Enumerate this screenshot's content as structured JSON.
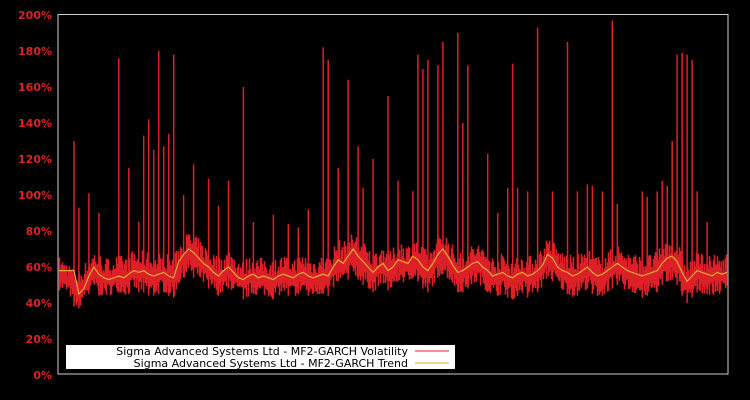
{
  "chart_data": {
    "type": "line",
    "title": "",
    "xlabel": "",
    "ylabel": "",
    "ylim": [
      0,
      200
    ],
    "y_tick_labels": [
      "0%",
      "20%",
      "40%",
      "60%",
      "80%",
      "100%",
      "120%",
      "140%",
      "160%",
      "180%",
      "200%"
    ],
    "y_ticks": [
      0,
      20,
      40,
      60,
      80,
      100,
      120,
      140,
      160,
      180,
      200
    ],
    "grid": false,
    "background": "#000000",
    "frame_color": "#cccccc",
    "tick_label_color": "#dd2222",
    "legend": {
      "position": "lower-left",
      "entries": [
        {
          "label": "Sigma Advanced Systems Ltd - MF2-GARCH Volatility",
          "color": "#dd2028"
        },
        {
          "label": "Sigma Advanced Systems Ltd - MF2-GARCH Trend",
          "color": "#ddaa33"
        }
      ]
    },
    "x_points": 135,
    "series": [
      {
        "name": "Sigma Advanced Systems Ltd - MF2-GARCH Trend",
        "color": "#ddaa33",
        "values": [
          58,
          58,
          58,
          58,
          45,
          48,
          55,
          60,
          56,
          54,
          53,
          54,
          55,
          54,
          56,
          58,
          57,
          58,
          56,
          55,
          56,
          57,
          55,
          54,
          63,
          67,
          70,
          68,
          65,
          62,
          60,
          57,
          55,
          58,
          60,
          57,
          54,
          53,
          55,
          56,
          54,
          55,
          54,
          53,
          55,
          56,
          55,
          54,
          56,
          57,
          55,
          54,
          55,
          56,
          55,
          60,
          64,
          62,
          66,
          70,
          66,
          63,
          60,
          57,
          60,
          62,
          58,
          60,
          64,
          63,
          62,
          66,
          64,
          60,
          58,
          62,
          67,
          70,
          66,
          61,
          57,
          58,
          60,
          62,
          63,
          60,
          58,
          55,
          56,
          57,
          55,
          54,
          56,
          57,
          55,
          56,
          58,
          61,
          67,
          65,
          60,
          58,
          57,
          55,
          56,
          58,
          60,
          57,
          55,
          56,
          58,
          60,
          62,
          60,
          58,
          57,
          56,
          55,
          56,
          57,
          58,
          62,
          65,
          66,
          63,
          57,
          52,
          55,
          58,
          57,
          56,
          55,
          57,
          56,
          57
        ]
      },
      {
        "name": "Sigma Advanced Systems Ltd - MF2-GARCH Volatility",
        "color": "#dd2028",
        "band_low": [
          47,
          46,
          44,
          38,
          37,
          42,
          45,
          46,
          44,
          43,
          44,
          45,
          46,
          44,
          45,
          47,
          46,
          46,
          44,
          44,
          45,
          46,
          44,
          43,
          50,
          54,
          56,
          54,
          52,
          50,
          48,
          46,
          44,
          45,
          48,
          46,
          43,
          42,
          43,
          45,
          43,
          44,
          43,
          42,
          44,
          45,
          44,
          43,
          45,
          46,
          44,
          43,
          44,
          45,
          44,
          48,
          52,
          50,
          53,
          56,
          53,
          50,
          48,
          46,
          48,
          50,
          47,
          48,
          52,
          51,
          50,
          54,
          52,
          48,
          46,
          50,
          54,
          56,
          53,
          49,
          46,
          46,
          48,
          50,
          51,
          48,
          46,
          43,
          44,
          45,
          43,
          42,
          44,
          45,
          43,
          44,
          46,
          49,
          54,
          52,
          48,
          46,
          45,
          43,
          44,
          46,
          48,
          45,
          43,
          44,
          46,
          48,
          50,
          48,
          46,
          45,
          44,
          43,
          44,
          45,
          46,
          50,
          52,
          53,
          50,
          44,
          40,
          43,
          46,
          45,
          45,
          44,
          45,
          45,
          46
        ],
        "band_high": [
          66,
          64,
          62,
          60,
          58,
          62,
          66,
          70,
          68,
          66,
          65,
          66,
          67,
          66,
          68,
          70,
          68,
          70,
          68,
          66,
          68,
          69,
          67,
          66,
          74,
          78,
          80,
          78,
          76,
          73,
          71,
          68,
          66,
          68,
          71,
          68,
          65,
          64,
          66,
          67,
          65,
          66,
          65,
          64,
          66,
          67,
          66,
          65,
          67,
          68,
          66,
          65,
          66,
          67,
          66,
          72,
          76,
          74,
          77,
          80,
          77,
          74,
          71,
          68,
          71,
          73,
          69,
          71,
          75,
          74,
          73,
          77,
          75,
          71,
          69,
          73,
          78,
          80,
          77,
          72,
          68,
          69,
          71,
          73,
          74,
          71,
          69,
          66,
          67,
          68,
          66,
          65,
          67,
          68,
          66,
          67,
          69,
          72,
          78,
          76,
          71,
          69,
          68,
          66,
          67,
          69,
          71,
          68,
          66,
          67,
          69,
          71,
          73,
          71,
          69,
          68,
          67,
          66,
          67,
          68,
          69,
          73,
          76,
          77,
          74,
          68,
          62,
          66,
          69,
          68,
          67,
          66,
          68,
          67,
          68
        ],
        "spikes": [
          {
            "x_index": 3,
            "peak": 130
          },
          {
            "x_index": 4,
            "peak": 93
          },
          {
            "x_index": 6,
            "peak": 101
          },
          {
            "x_index": 8,
            "peak": 90
          },
          {
            "x_index": 12,
            "peak": 176
          },
          {
            "x_index": 14,
            "peak": 115
          },
          {
            "x_index": 16,
            "peak": 85
          },
          {
            "x_index": 17,
            "peak": 133
          },
          {
            "x_index": 18,
            "peak": 142
          },
          {
            "x_index": 19,
            "peak": 125
          },
          {
            "x_index": 20,
            "peak": 180
          },
          {
            "x_index": 21,
            "peak": 127
          },
          {
            "x_index": 22,
            "peak": 134
          },
          {
            "x_index": 23,
            "peak": 178
          },
          {
            "x_index": 25,
            "peak": 100
          },
          {
            "x_index": 27,
            "peak": 117
          },
          {
            "x_index": 30,
            "peak": 109
          },
          {
            "x_index": 32,
            "peak": 94
          },
          {
            "x_index": 34,
            "peak": 108
          },
          {
            "x_index": 37,
            "peak": 160
          },
          {
            "x_index": 39,
            "peak": 85
          },
          {
            "x_index": 43,
            "peak": 89
          },
          {
            "x_index": 46,
            "peak": 84
          },
          {
            "x_index": 48,
            "peak": 82
          },
          {
            "x_index": 50,
            "peak": 92
          },
          {
            "x_index": 53,
            "peak": 182
          },
          {
            "x_index": 54,
            "peak": 175
          },
          {
            "x_index": 56,
            "peak": 115
          },
          {
            "x_index": 58,
            "peak": 164
          },
          {
            "x_index": 60,
            "peak": 127
          },
          {
            "x_index": 61,
            "peak": 104
          },
          {
            "x_index": 63,
            "peak": 120
          },
          {
            "x_index": 66,
            "peak": 155
          },
          {
            "x_index": 68,
            "peak": 108
          },
          {
            "x_index": 71,
            "peak": 102
          },
          {
            "x_index": 72,
            "peak": 178
          },
          {
            "x_index": 73,
            "peak": 170
          },
          {
            "x_index": 74,
            "peak": 175
          },
          {
            "x_index": 76,
            "peak": 172
          },
          {
            "x_index": 77,
            "peak": 185
          },
          {
            "x_index": 80,
            "peak": 190
          },
          {
            "x_index": 81,
            "peak": 140
          },
          {
            "x_index": 82,
            "peak": 172
          },
          {
            "x_index": 86,
            "peak": 123
          },
          {
            "x_index": 88,
            "peak": 90
          },
          {
            "x_index": 90,
            "peak": 104
          },
          {
            "x_index": 91,
            "peak": 173
          },
          {
            "x_index": 92,
            "peak": 104
          },
          {
            "x_index": 94,
            "peak": 102
          },
          {
            "x_index": 96,
            "peak": 193
          },
          {
            "x_index": 99,
            "peak": 102
          },
          {
            "x_index": 102,
            "peak": 185
          },
          {
            "x_index": 104,
            "peak": 102
          },
          {
            "x_index": 106,
            "peak": 106
          },
          {
            "x_index": 107,
            "peak": 105
          },
          {
            "x_index": 109,
            "peak": 102
          },
          {
            "x_index": 111,
            "peak": 197
          },
          {
            "x_index": 112,
            "peak": 95
          },
          {
            "x_index": 117,
            "peak": 102
          },
          {
            "x_index": 118,
            "peak": 99
          },
          {
            "x_index": 120,
            "peak": 102
          },
          {
            "x_index": 121,
            "peak": 108
          },
          {
            "x_index": 122,
            "peak": 105
          },
          {
            "x_index": 123,
            "peak": 130
          },
          {
            "x_index": 124,
            "peak": 178
          },
          {
            "x_index": 125,
            "peak": 179
          },
          {
            "x_index": 126,
            "peak": 178
          },
          {
            "x_index": 127,
            "peak": 175
          },
          {
            "x_index": 128,
            "peak": 102
          },
          {
            "x_index": 130,
            "peak": 85
          }
        ]
      }
    ]
  }
}
